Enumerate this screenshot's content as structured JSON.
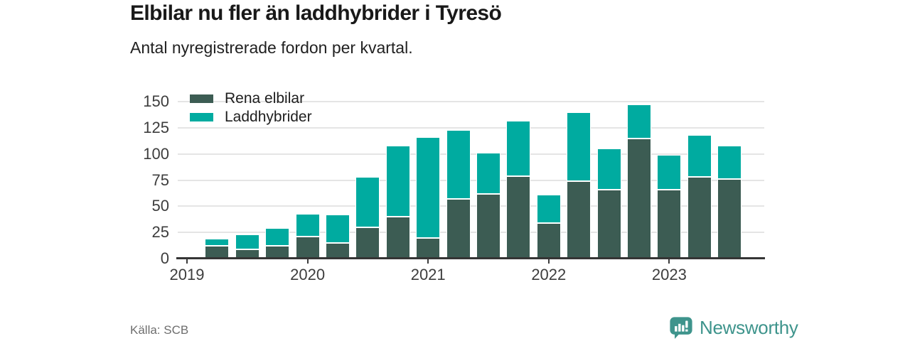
{
  "header": {
    "title": "Elbilar nu fler än laddhybrider i Tyresö",
    "subtitle": "Antal nyregistrerade fordon per kvartal."
  },
  "footer": {
    "source": "Källa: SCB",
    "brand": "Newsworthy"
  },
  "colors": {
    "elbilar": "#3C5C53",
    "laddhybrider": "#00ABA0",
    "brand": "#3E948C",
    "grid": "#E5E5E5",
    "axis": "#353535"
  },
  "chart_data": {
    "type": "bar",
    "stacked": true,
    "title": "Elbilar nu fler än laddhybrider i Tyresö",
    "subtitle": "Antal nyregistrerade fordon per kvartal.",
    "categories": [
      "2019 Q2",
      "2019 Q3",
      "2019 Q4",
      "2020 Q1",
      "2020 Q2",
      "2020 Q3",
      "2020 Q4",
      "2021 Q1",
      "2021 Q2",
      "2021 Q3",
      "2021 Q4",
      "2022 Q1",
      "2022 Q2",
      "2022 Q3",
      "2022 Q4",
      "2023 Q1",
      "2023 Q2",
      "2023 Q3"
    ],
    "series": [
      {
        "name": "Rena elbilar",
        "color": "#3C5C53",
        "values": [
          12,
          9,
          12,
          21,
          15,
          30,
          40,
          20,
          57,
          62,
          79,
          34,
          74,
          66,
          115,
          66,
          78,
          76
        ]
      },
      {
        "name": "Laddhybrider",
        "color": "#00ABA0",
        "values": [
          7,
          14,
          17,
          22,
          27,
          48,
          68,
          96,
          66,
          39,
          53,
          27,
          66,
          39,
          32,
          33,
          40,
          32
        ]
      }
    ],
    "xlabel": "",
    "ylabel": "",
    "ylim": [
      0,
      150
    ],
    "yticks": [
      0,
      25,
      50,
      75,
      100,
      125,
      150
    ],
    "xticks": [
      "2019",
      "2020",
      "2021",
      "2022",
      "2023"
    ],
    "grid": "horizontal",
    "legend_position": "top-left",
    "source": "Källa: SCB"
  }
}
